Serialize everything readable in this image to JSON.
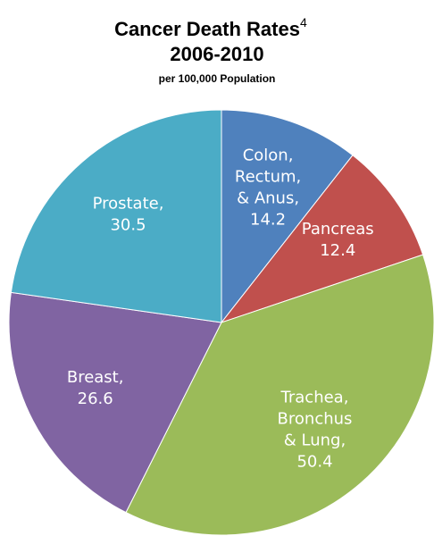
{
  "chart_data": {
    "type": "pie",
    "title": "Cancer Death Rates",
    "title_note": "4",
    "period": "2006-2010",
    "subtitle": "per 100,000 Population",
    "categories": [
      [
        "Colon,",
        "Rectum,",
        "& Anus,"
      ],
      [
        "Pancreas"
      ],
      [
        "Trachea,",
        "Bronchus",
        "& Lung,"
      ],
      [
        "Breast,"
      ],
      [
        "Prostate,"
      ]
    ],
    "values": [
      14.2,
      12.4,
      50.4,
      26.6,
      30.5
    ],
    "colors": [
      "#4f81bd",
      "#c0504d",
      "#9bbb59",
      "#8064a2",
      "#4bacc6"
    ],
    "start_angle": 0,
    "direction": "clockwise"
  }
}
